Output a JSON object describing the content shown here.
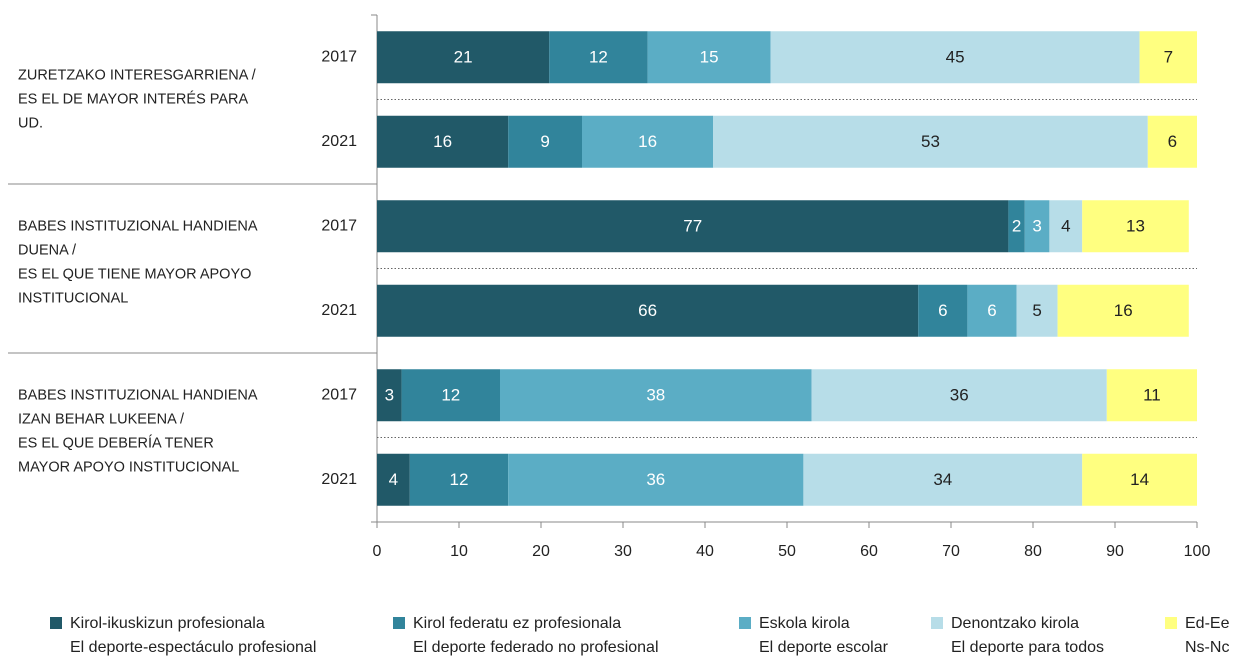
{
  "chart_data": {
    "type": "bar",
    "orientation": "horizontal",
    "stacked": true,
    "groups": [
      {
        "label": [
          "ZURETZAKO INTERESGARRIENA /",
          "ES EL DE MAYOR INTERÉS PARA",
          "UD."
        ]
      },
      {
        "label": [
          "BABES INSTITUZIONAL HANDIENA",
          "DUENA /",
          "ES EL QUE TIENE MAYOR APOYO",
          "INSTITUCIONAL"
        ]
      },
      {
        "label": [
          "BABES INSTITUZIONAL HANDIENA",
          "IZAN BEHAR LUKEENA /",
          "ES EL QUE DEBERÍA TENER",
          "MAYOR APOYO INSTITUCIONAL"
        ]
      }
    ],
    "categories": [
      "2017",
      "2021",
      "2017",
      "2021",
      "2017",
      "2021"
    ],
    "series": [
      {
        "name": [
          "Kirol-ikuskizun profesionala",
          "El deporte-espectáculo profesional"
        ],
        "color": "#215968",
        "values": [
          21,
          16,
          77,
          66,
          3,
          4
        ]
      },
      {
        "name": [
          "Kirol federatu ez profesionala",
          "El deporte federado no profesional"
        ],
        "color": "#31849b",
        "values": [
          12,
          9,
          2,
          6,
          12,
          12
        ]
      },
      {
        "name": [
          "Eskola kirola",
          "El deporte escolar"
        ],
        "color": "#5badc5",
        "values": [
          15,
          16,
          3,
          6,
          38,
          36
        ]
      },
      {
        "name": [
          "Denontzako kirola",
          "El deporte para todos"
        ],
        "color": "#b7dde8",
        "values": [
          45,
          53,
          4,
          5,
          36,
          34
        ]
      },
      {
        "name": [
          "Ed-Ee",
          "Ns-Nc"
        ],
        "color": "#ffff80",
        "values": [
          7,
          6,
          13,
          16,
          11,
          14
        ]
      }
    ],
    "xlim": [
      0,
      100
    ],
    "xticks": [
      0,
      10,
      20,
      30,
      40,
      50,
      60,
      70,
      80,
      90,
      100
    ],
    "grid": false
  }
}
